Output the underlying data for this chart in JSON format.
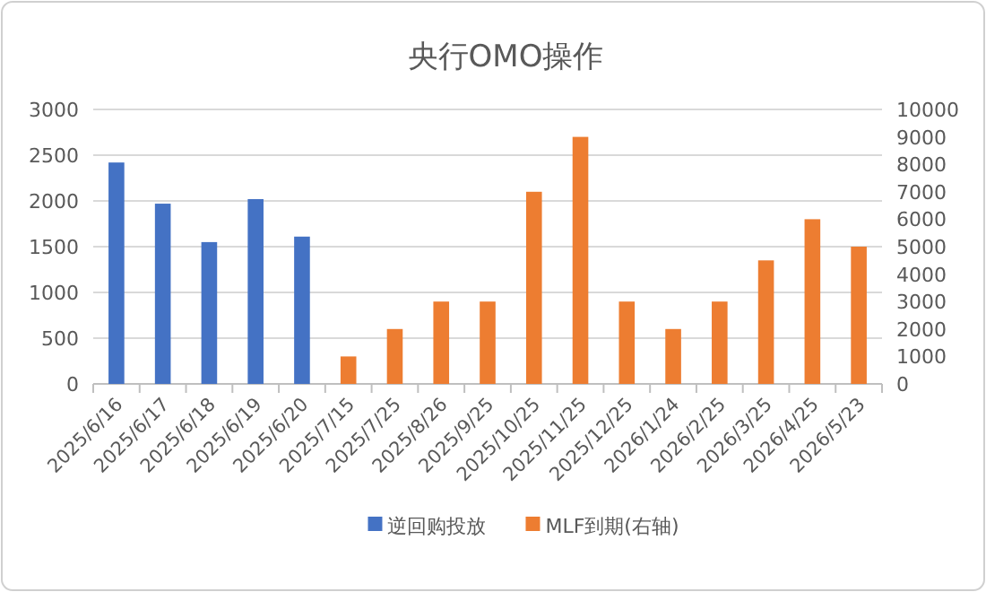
{
  "chart_data": {
    "type": "bar",
    "title": "央行OMO操作",
    "categories": [
      "2025/6/16",
      "2025/6/17",
      "2025/6/18",
      "2025/6/19",
      "2025/6/20",
      "2025/7/15",
      "2025/7/25",
      "2025/8/26",
      "2025/9/25",
      "2025/10/25",
      "2025/11/25",
      "2025/12/25",
      "2026/1/24",
      "2026/2/25",
      "2026/3/25",
      "2026/4/25",
      "2026/5/23"
    ],
    "series": [
      {
        "name": "逆回购投放",
        "color": "#4472c4",
        "values": [
          2420,
          1970,
          1550,
          2020,
          1610,
          null,
          null,
          null,
          null,
          null,
          null,
          null,
          null,
          null,
          null,
          null,
          null
        ]
      },
      {
        "name": "MLF到期(右轴)",
        "color": "#ed7d31",
        "axis": "y2",
        "values": [
          null,
          null,
          null,
          null,
          null,
          1000,
          2000,
          3000,
          3000,
          7000,
          9000,
          3000,
          2000,
          3000,
          4500,
          6000,
          5000
        ]
      }
    ],
    "ylim": [
      0,
      3000
    ],
    "yticks": [
      0,
      500,
      1000,
      1500,
      2000,
      2500,
      3000
    ],
    "y2lim": [
      0,
      10000
    ],
    "y2ticks": [
      0,
      1000,
      2000,
      3000,
      4000,
      5000,
      6000,
      7000,
      8000,
      9000,
      10000
    ],
    "grid": "y",
    "legend": "bottom"
  }
}
